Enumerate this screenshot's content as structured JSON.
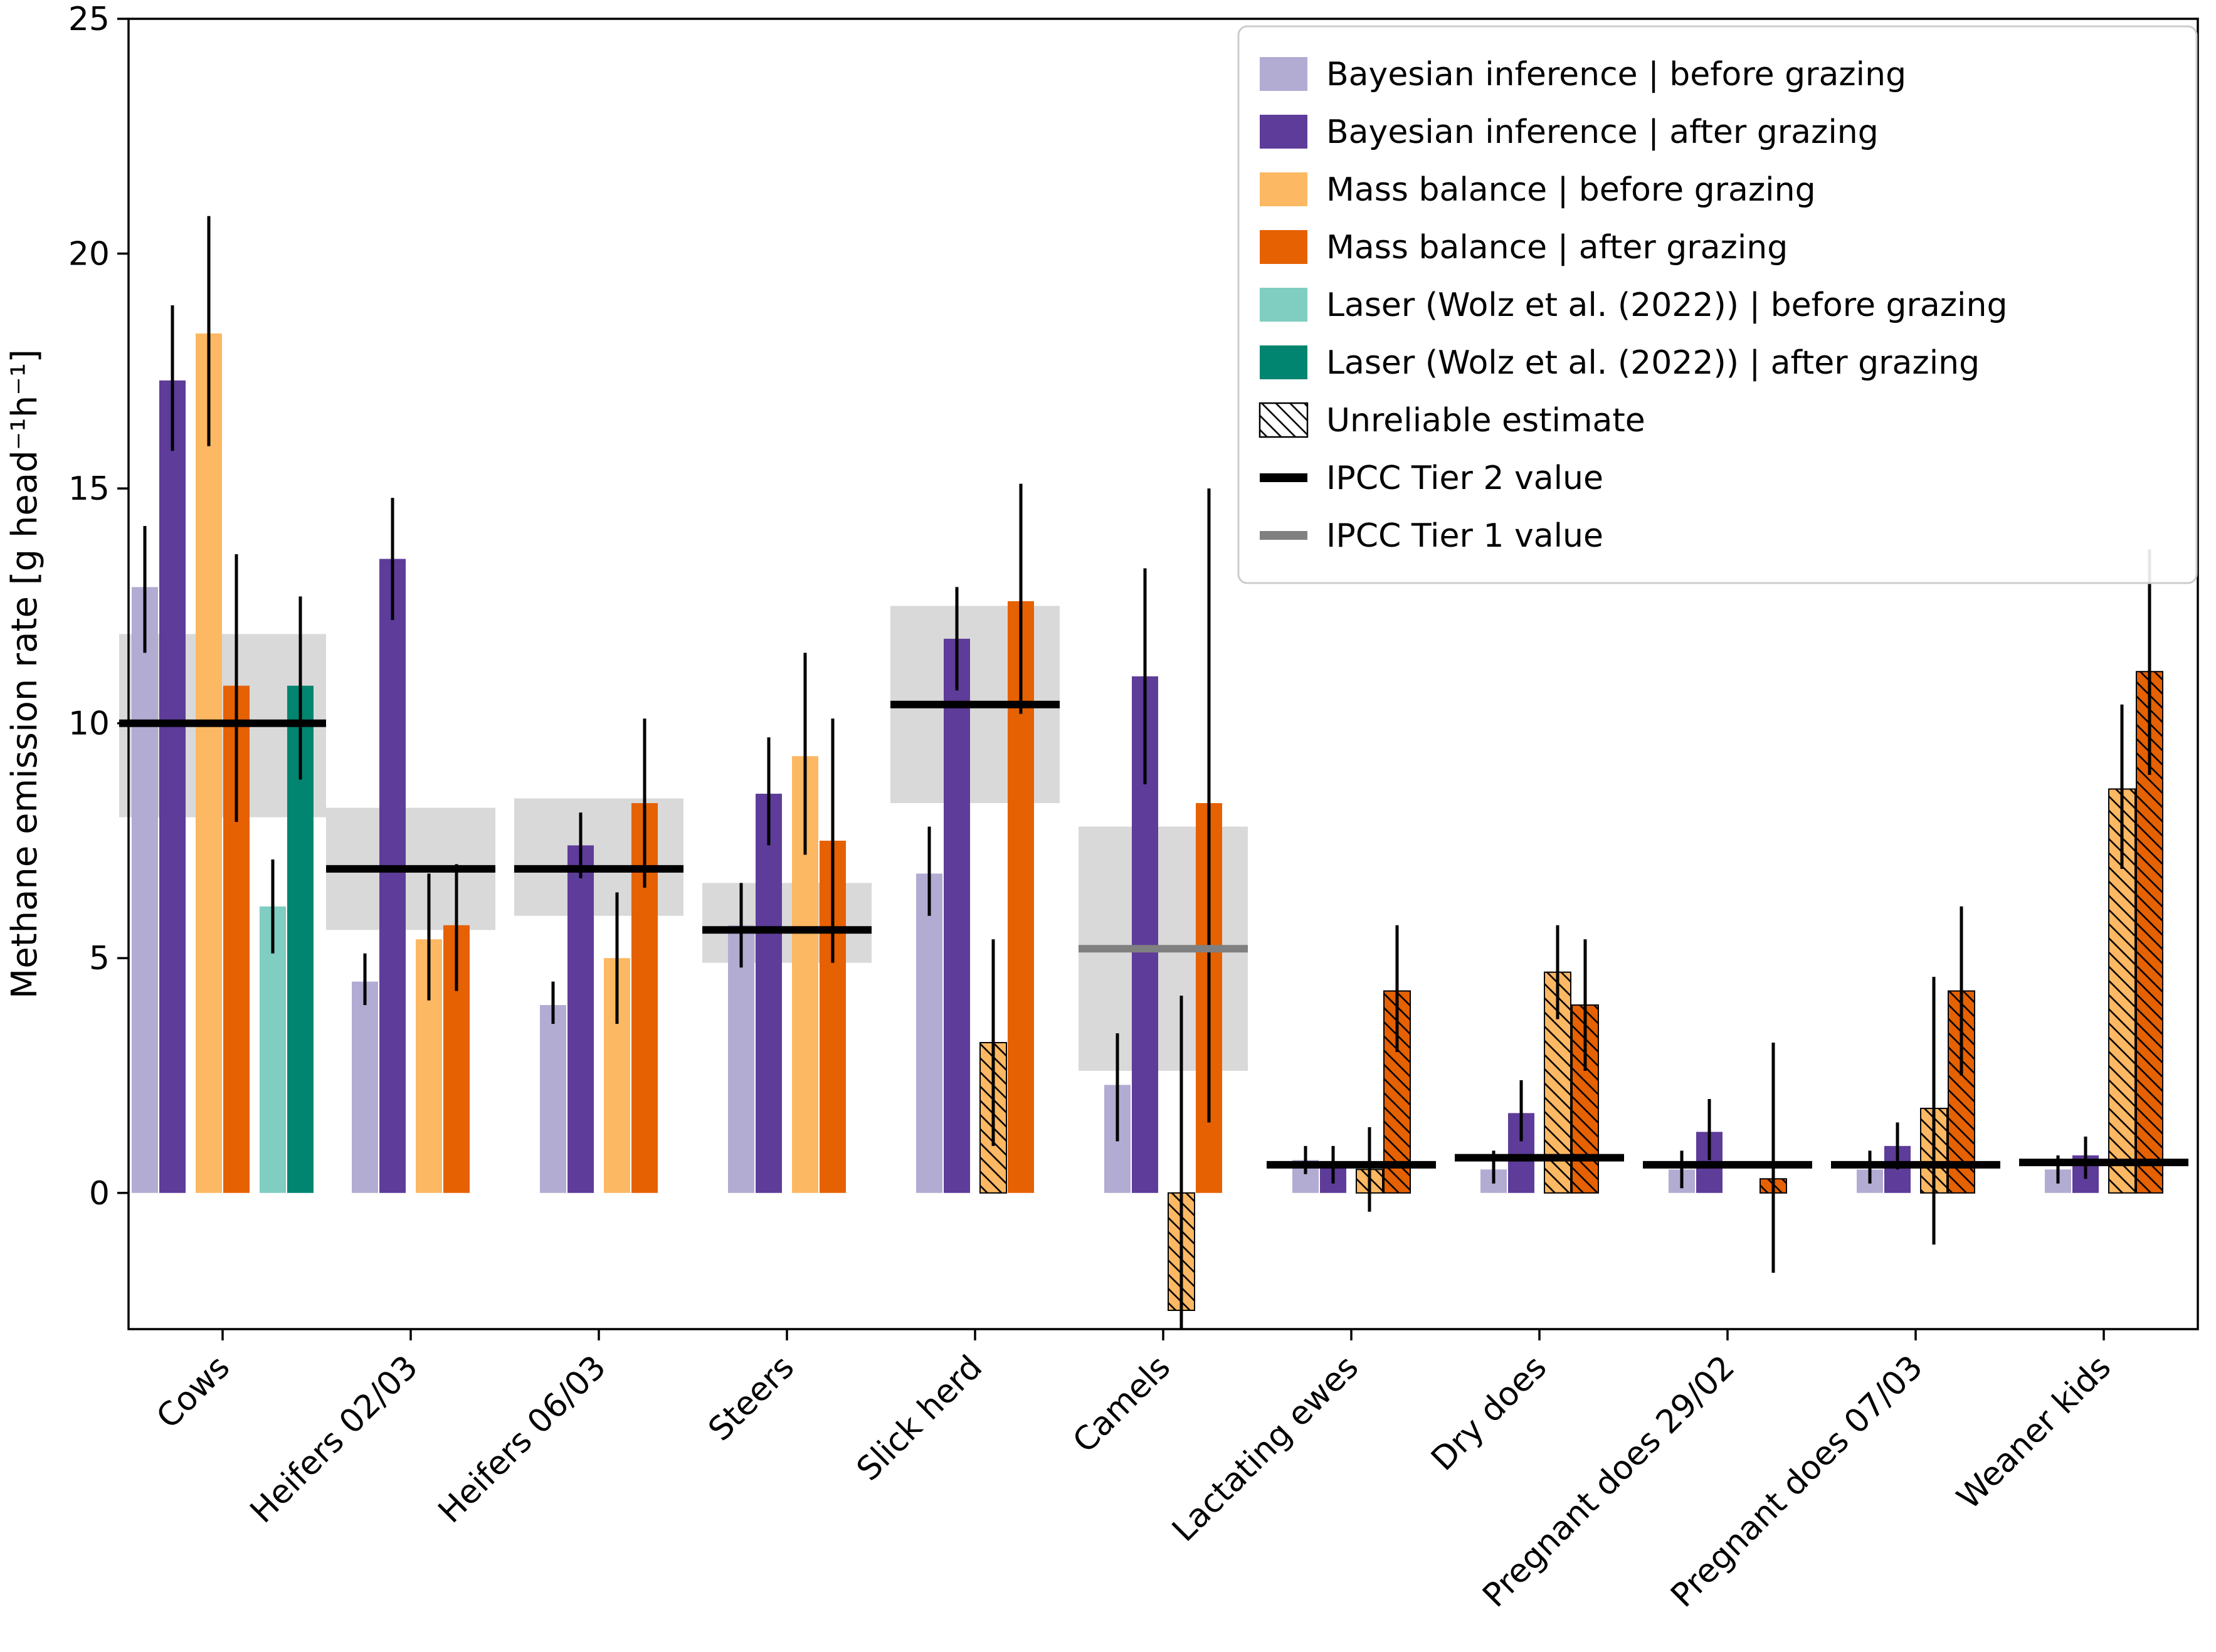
{
  "chart_data": {
    "type": "bar",
    "title": "",
    "xlabel": "",
    "ylabel": "Methane emission rate [g head⁻¹h⁻¹]",
    "ylim": [
      -2.9,
      25
    ],
    "yticks": [
      0,
      5,
      10,
      15,
      20,
      25
    ],
    "grid": false,
    "legend_position": "upper right",
    "colors": {
      "bayes_before": "#b2abd2",
      "bayes_after": "#5e3c99",
      "mass_before": "#fdb863",
      "mass_after": "#e66101",
      "laser_before": "#80cdc1",
      "laser_after": "#018571",
      "tier2": "#000000",
      "tier1": "#808080",
      "band": "#d9d9d9"
    },
    "legend": [
      {
        "type": "patch",
        "series": "bayes_before",
        "label": "Bayesian inference | before grazing"
      },
      {
        "type": "patch",
        "series": "bayes_after",
        "label": "Bayesian inference | after grazing"
      },
      {
        "type": "patch",
        "series": "mass_before",
        "label": "Mass balance | before grazing"
      },
      {
        "type": "patch",
        "series": "mass_after",
        "label": "Mass balance | after grazing"
      },
      {
        "type": "patch",
        "series": "laser_before",
        "label": "Laser (Wolz et al. (2022)) | before grazing"
      },
      {
        "type": "patch",
        "series": "laser_after",
        "label": "Laser (Wolz et al. (2022)) | after grazing"
      },
      {
        "type": "hatch",
        "label": "Unreliable estimate"
      },
      {
        "type": "line",
        "series": "tier2",
        "label": "IPCC Tier 2 value"
      },
      {
        "type": "line",
        "series": "tier1",
        "label": "IPCC Tier 1 value"
      }
    ],
    "groups": [
      {
        "label": "Cows",
        "bars": [
          {
            "slot": 0,
            "series": "bayes_before",
            "value": 12.9,
            "lo": 11.5,
            "hi": 14.2
          },
          {
            "slot": 1,
            "series": "bayes_after",
            "value": 17.3,
            "lo": 15.8,
            "hi": 18.9
          },
          {
            "slot": 2,
            "series": "mass_before",
            "value": 18.3,
            "lo": 15.9,
            "hi": 20.8
          },
          {
            "slot": 3,
            "series": "mass_after",
            "value": 10.8,
            "lo": 7.9,
            "hi": 13.6
          },
          {
            "slot": 4,
            "series": "laser_before",
            "value": 6.1,
            "lo": 5.1,
            "hi": 7.1
          },
          {
            "slot": 5,
            "series": "laser_after",
            "value": 10.8,
            "lo": 8.8,
            "hi": 12.7
          }
        ],
        "ref": {
          "tier": "tier2",
          "value": 10.0,
          "band": [
            8.0,
            11.9
          ]
        }
      },
      {
        "label": "Heifers 02/03",
        "bars": [
          {
            "slot": 0,
            "series": "bayes_before",
            "value": 4.5,
            "lo": 4.0,
            "hi": 5.1
          },
          {
            "slot": 1,
            "series": "bayes_after",
            "value": 13.5,
            "lo": 12.2,
            "hi": 14.8
          },
          {
            "slot": 2,
            "series": "mass_before",
            "value": 5.4,
            "lo": 4.1,
            "hi": 6.8
          },
          {
            "slot": 3,
            "series": "mass_after",
            "value": 5.7,
            "lo": 4.3,
            "hi": 7.0
          }
        ],
        "ref": {
          "tier": "tier2",
          "value": 6.9,
          "band": [
            5.6,
            8.2
          ]
        }
      },
      {
        "label": "Heifers 06/03",
        "bars": [
          {
            "slot": 0,
            "series": "bayes_before",
            "value": 4.0,
            "lo": 3.6,
            "hi": 4.5
          },
          {
            "slot": 1,
            "series": "bayes_after",
            "value": 7.4,
            "lo": 6.7,
            "hi": 8.1
          },
          {
            "slot": 2,
            "series": "mass_before",
            "value": 5.0,
            "lo": 3.6,
            "hi": 6.4
          },
          {
            "slot": 3,
            "series": "mass_after",
            "value": 8.3,
            "lo": 6.5,
            "hi": 10.1
          }
        ],
        "ref": {
          "tier": "tier2",
          "value": 6.9,
          "band": [
            5.9,
            8.4
          ]
        }
      },
      {
        "label": "Steers",
        "bars": [
          {
            "slot": 0,
            "series": "bayes_before",
            "value": 5.7,
            "lo": 4.8,
            "hi": 6.6
          },
          {
            "slot": 1,
            "series": "bayes_after",
            "value": 8.5,
            "lo": 7.4,
            "hi": 9.7
          },
          {
            "slot": 2,
            "series": "mass_before",
            "value": 9.3,
            "lo": 7.2,
            "hi": 11.5
          },
          {
            "slot": 3,
            "series": "mass_after",
            "value": 7.5,
            "lo": 4.9,
            "hi": 10.1
          }
        ],
        "ref": {
          "tier": "tier2",
          "value": 5.6,
          "band": [
            4.9,
            6.6
          ]
        }
      },
      {
        "label": "Slick herd",
        "bars": [
          {
            "slot": 0,
            "series": "bayes_before",
            "value": 6.8,
            "lo": 5.9,
            "hi": 7.8
          },
          {
            "slot": 1,
            "series": "bayes_after",
            "value": 11.8,
            "lo": 10.7,
            "hi": 12.9
          },
          {
            "slot": 2,
            "series": "mass_before",
            "value": 3.2,
            "lo": 1.0,
            "hi": 5.4,
            "hatch": true
          },
          {
            "slot": 3,
            "series": "mass_after",
            "value": 12.6,
            "lo": 10.2,
            "hi": 15.1
          }
        ],
        "ref": {
          "tier": "tier2",
          "value": 10.4,
          "band": [
            8.3,
            12.5
          ]
        }
      },
      {
        "label": "Camels",
        "bars": [
          {
            "slot": 0,
            "series": "bayes_before",
            "value": 2.3,
            "lo": 1.1,
            "hi": 3.4
          },
          {
            "slot": 1,
            "series": "bayes_after",
            "value": 11.0,
            "lo": 8.7,
            "hi": 13.3
          },
          {
            "slot": 2,
            "series": "mass_before",
            "value": -2.5,
            "lo": -3.5,
            "hi": 4.2,
            "hatch": true
          },
          {
            "slot": 3,
            "series": "mass_after",
            "value": 8.3,
            "lo": 1.5,
            "hi": 15.0
          }
        ],
        "ref": {
          "tier": "tier1",
          "value": 5.2,
          "band": [
            2.6,
            7.8
          ]
        }
      },
      {
        "label": "Lactating ewes",
        "bars": [
          {
            "slot": 0,
            "series": "bayes_before",
            "value": 0.7,
            "lo": 0.4,
            "hi": 1.0
          },
          {
            "slot": 1,
            "series": "bayes_after",
            "value": 0.6,
            "lo": 0.2,
            "hi": 1.0
          },
          {
            "slot": 2,
            "series": "mass_before",
            "value": 0.5,
            "lo": -0.4,
            "hi": 1.4,
            "hatch": true
          },
          {
            "slot": 3,
            "series": "mass_after",
            "value": 4.3,
            "lo": 3.0,
            "hi": 5.7,
            "hatch": true
          }
        ],
        "ref": {
          "tier": "tier2",
          "value": 0.6,
          "band": null
        }
      },
      {
        "label": "Dry does",
        "bars": [
          {
            "slot": 0,
            "series": "bayes_before",
            "value": 0.5,
            "lo": 0.2,
            "hi": 0.9
          },
          {
            "slot": 1,
            "series": "bayes_after",
            "value": 1.7,
            "lo": 1.1,
            "hi": 2.4
          },
          {
            "slot": 2,
            "series": "mass_before",
            "value": 4.7,
            "lo": 3.7,
            "hi": 5.7,
            "hatch": true
          },
          {
            "slot": 3,
            "series": "mass_after",
            "value": 4.0,
            "lo": 2.6,
            "hi": 5.4,
            "hatch": true
          }
        ],
        "ref": {
          "tier": "tier2",
          "value": 0.75,
          "band": null
        }
      },
      {
        "label": "Pregnant does 29/02",
        "bars": [
          {
            "slot": 0,
            "series": "bayes_before",
            "value": 0.5,
            "lo": 0.1,
            "hi": 0.9
          },
          {
            "slot": 1,
            "series": "bayes_after",
            "value": 1.3,
            "lo": 0.7,
            "hi": 2.0
          },
          {
            "slot": 3,
            "series": "mass_after",
            "value": 0.3,
            "lo": -1.7,
            "hi": 3.2,
            "hatch": true
          }
        ],
        "ref": {
          "tier": "tier2",
          "value": 0.6,
          "band": null
        }
      },
      {
        "label": "Pregnant does 07/03",
        "bars": [
          {
            "slot": 0,
            "series": "bayes_before",
            "value": 0.5,
            "lo": 0.2,
            "hi": 0.9
          },
          {
            "slot": 1,
            "series": "bayes_after",
            "value": 1.0,
            "lo": 0.5,
            "hi": 1.5
          },
          {
            "slot": 2,
            "series": "mass_before",
            "value": 1.8,
            "lo": -1.1,
            "hi": 4.6,
            "hatch": true
          },
          {
            "slot": 3,
            "series": "mass_after",
            "value": 4.3,
            "lo": 2.5,
            "hi": 6.1,
            "hatch": true
          }
        ],
        "ref": {
          "tier": "tier2",
          "value": 0.6,
          "band": null
        }
      },
      {
        "label": "Weaner kids",
        "bars": [
          {
            "slot": 0,
            "series": "bayes_before",
            "value": 0.5,
            "lo": 0.2,
            "hi": 0.8
          },
          {
            "slot": 1,
            "series": "bayes_after",
            "value": 0.8,
            "lo": 0.3,
            "hi": 1.2
          },
          {
            "slot": 2,
            "series": "mass_before",
            "value": 8.6,
            "lo": 6.9,
            "hi": 10.4,
            "hatch": true
          },
          {
            "slot": 3,
            "series": "mass_after",
            "value": 11.1,
            "lo": 8.9,
            "hi": 13.7,
            "hatch": true
          }
        ],
        "ref": {
          "tier": "tier2",
          "value": 0.65,
          "band": null
        }
      }
    ]
  }
}
